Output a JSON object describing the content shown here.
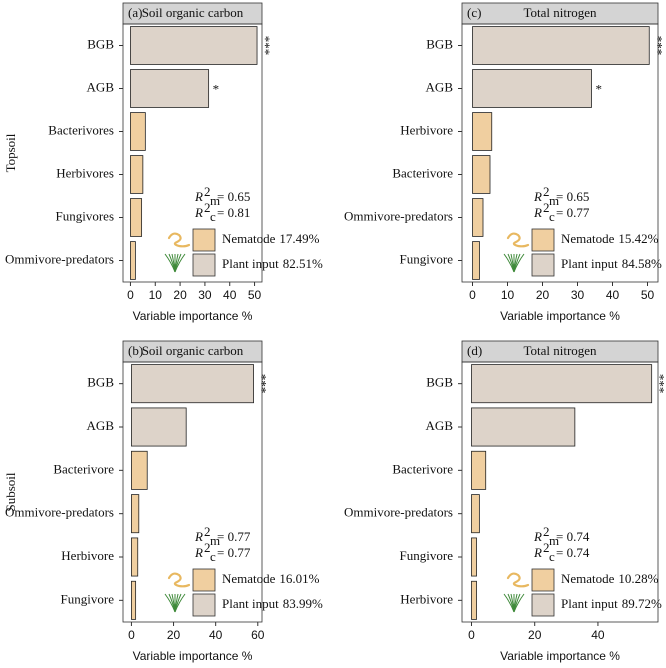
{
  "chart_data": [
    {
      "type": "bar",
      "orientation": "horizontal",
      "panel": "(a)",
      "title": "Soil organic carbon",
      "row_label": "Topsoil",
      "categories": [
        "BGB",
        "AGB",
        "Bacterivores",
        "Herbivores",
        "Fungivores",
        "Ommivore-predators"
      ],
      "values": [
        51,
        31.5,
        6,
        5,
        4.5,
        2
      ],
      "colors": [
        "#ddd3c9",
        "#ddd3c9",
        "#f0cfa0",
        "#f0cfa0",
        "#f0cfa0",
        "#f0cfa0"
      ],
      "significance": [
        "***",
        "*",
        null,
        null,
        null,
        null
      ],
      "xlim": [
        -3,
        53
      ],
      "xticks": [
        0,
        10,
        20,
        30,
        40,
        50
      ],
      "x_label": "Variable importance %",
      "r2": [
        {
          "symbol": "R",
          "sup": "2",
          "sub": "m",
          "text": "= 0.65"
        },
        {
          "symbol": "R",
          "sup": "2",
          "sub": "c",
          "text": "= 0.81"
        }
      ],
      "legend": [
        {
          "name": "Nematode",
          "share": "17.49%",
          "color": "#f0cfa0"
        },
        {
          "name": "Plant input",
          "share": "82.51%",
          "color": "#ddd3c9"
        }
      ]
    },
    {
      "type": "bar",
      "orientation": "horizontal",
      "panel": "(b)",
      "title": "Soil organic carbon",
      "row_label": "Subsoil",
      "categories": [
        "BGB",
        "AGB",
        "Bacterivore",
        "Ommivore-predators",
        "Herbivore",
        "Fungivore"
      ],
      "values": [
        58,
        26,
        7.5,
        3.5,
        3,
        2
      ],
      "colors": [
        "#ddd3c9",
        "#ddd3c9",
        "#f0cfa0",
        "#f0cfa0",
        "#f0cfa0",
        "#f0cfa0"
      ],
      "significance": [
        "***",
        null,
        null,
        null,
        null,
        null
      ],
      "xlim": [
        -4,
        62
      ],
      "xticks": [
        0,
        20,
        40,
        60
      ],
      "x_label": "Variable importance %",
      "r2": [
        {
          "symbol": "R",
          "sup": "2",
          "sub": "m",
          "text": "= 0.77"
        },
        {
          "symbol": "R",
          "sup": "2",
          "sub": "c",
          "text": "= 0.77"
        }
      ],
      "legend": [
        {
          "name": "Nematode",
          "share": "16.01%",
          "color": "#f0cfa0"
        },
        {
          "name": "Plant input",
          "share": "83.99%",
          "color": "#ddd3c9"
        }
      ]
    },
    {
      "type": "bar",
      "orientation": "horizontal",
      "panel": "(c)",
      "title": "Total nitrogen",
      "categories": [
        "BGB",
        "AGB",
        "Herbivore",
        "Bacterivore",
        "Ommivore-predators",
        "Fungivore"
      ],
      "values": [
        50.5,
        34,
        5.5,
        5,
        3,
        2
      ],
      "colors": [
        "#ddd3c9",
        "#ddd3c9",
        "#f0cfa0",
        "#f0cfa0",
        "#f0cfa0",
        "#f0cfa0"
      ],
      "significance": [
        "***",
        "*",
        null,
        null,
        null,
        null
      ],
      "xlim": [
        -3,
        53
      ],
      "xticks": [
        0,
        10,
        20,
        30,
        40,
        50
      ],
      "x_label": "Variable importance %",
      "r2": [
        {
          "symbol": "R",
          "sup": "2",
          "sub": "m",
          "text": "= 0.65"
        },
        {
          "symbol": "R",
          "sup": "2",
          "sub": "c",
          "text": "= 0.77"
        }
      ],
      "legend": [
        {
          "name": "Nematode",
          "share": "15.42%",
          "color": "#f0cfa0"
        },
        {
          "name": "Plant input",
          "share": "84.58%",
          "color": "#ddd3c9"
        }
      ]
    },
    {
      "type": "bar",
      "orientation": "horizontal",
      "panel": "(d)",
      "title": "Total nitrogen",
      "categories": [
        "BGB",
        "AGB",
        "Bacterivore",
        "Ommivore-predators",
        "Fungivore",
        "Herbivore"
      ],
      "values": [
        57,
        32.7,
        4.5,
        2.5,
        1.6,
        1.6
      ],
      "colors": [
        "#ddd3c9",
        "#ddd3c9",
        "#f0cfa0",
        "#f0cfa0",
        "#f0cfa0",
        "#f0cfa0"
      ],
      "significance": [
        "***",
        null,
        null,
        null,
        null,
        null
      ],
      "xlim": [
        -3,
        59
      ],
      "xticks": [
        0,
        20,
        40
      ],
      "x_label": "Variable importance %",
      "r2": [
        {
          "symbol": "R",
          "sup": "2",
          "sub": "m",
          "text": "= 0.74"
        },
        {
          "symbol": "R",
          "sup": "2",
          "sub": "c",
          "text": "= 0.74"
        }
      ],
      "legend": [
        {
          "name": "Nematode",
          "share": "10.28%",
          "color": "#f0cfa0"
        },
        {
          "name": "Plant input",
          "share": "89.72%",
          "color": "#ddd3c9"
        }
      ]
    }
  ]
}
